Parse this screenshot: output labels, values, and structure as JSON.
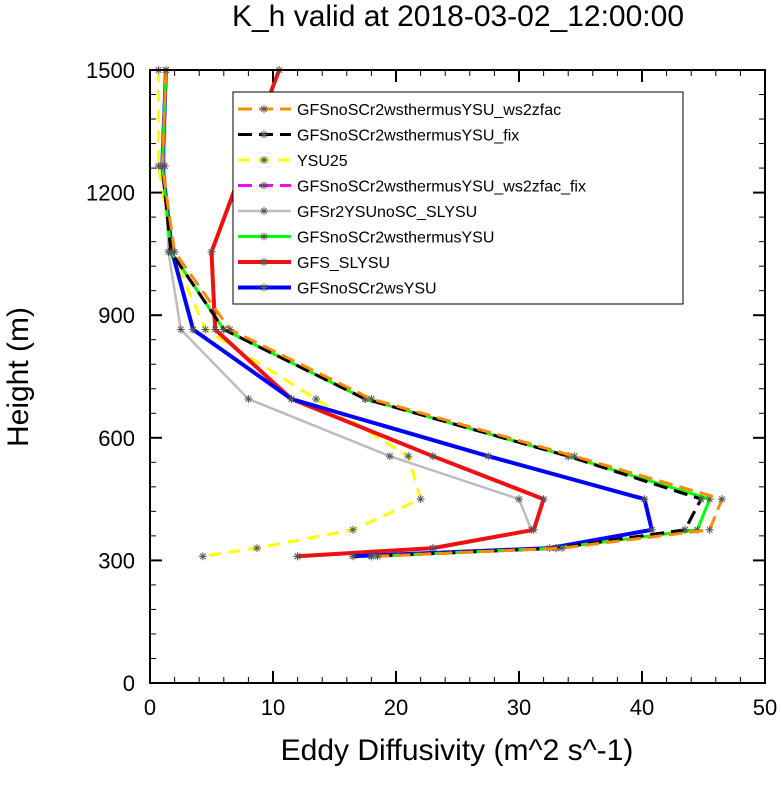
{
  "chart_data": {
    "type": "line",
    "title": "K_h valid at 2018-03-02_12:00:00",
    "xlabel": "Eddy Diffusivity (m^2 s^-1)",
    "ylabel": "Height (m)",
    "xlim": [
      0,
      50
    ],
    "ylim": [
      0,
      1500
    ],
    "xticks": [
      0,
      10,
      20,
      30,
      40,
      50
    ],
    "yticks": [
      0,
      300,
      600,
      900,
      1200,
      1500
    ],
    "xtick_labels": [
      "0",
      "10",
      "20",
      "30",
      "40",
      "50"
    ],
    "ytick_labels": [
      "0",
      "300",
      "600",
      "900",
      "1200",
      "1500"
    ],
    "grid": false,
    "legend_position": "top-right",
    "series": [
      {
        "name": "GFSnoSCr2wsthermusYSU_ws2zfac",
        "color": "#ff8c00",
        "dash": "long-dash",
        "x": [
          1.3,
          1.0,
          2.0,
          6.5,
          18.0,
          34.5,
          46.5,
          45.5,
          33.5,
          18.5
        ],
        "y": [
          1500,
          1265,
          1055,
          865,
          695,
          555,
          450,
          375,
          330,
          310
        ]
      },
      {
        "name": "GFSnoSCr2wsthermusYSU_fix",
        "color": "#000000",
        "dash": "long-dash",
        "x": [
          1.3,
          1.0,
          1.7,
          6.0,
          17.5,
          34.0,
          44.8,
          43.5,
          33.0,
          18.0
        ],
        "y": [
          1500,
          1265,
          1055,
          865,
          695,
          555,
          450,
          375,
          330,
          310
        ]
      },
      {
        "name": "YSU25",
        "color": "#ffff00",
        "dash": "dash",
        "x": [
          0.7,
          0.7,
          1.8,
          4.5,
          13.5,
          21.0,
          22.0,
          16.5,
          8.7,
          4.3
        ],
        "y": [
          1500,
          1265,
          1055,
          865,
          695,
          555,
          450,
          375,
          330,
          310
        ]
      },
      {
        "name": "GFSnoSCr2wsthermusYSU_ws2zfac_fix",
        "color": "#ff00ff",
        "dash": "long-dash",
        "x": [
          1.3,
          1.0,
          1.7,
          6.0,
          17.5,
          34.0,
          44.8,
          43.5,
          33.0,
          18.0
        ],
        "y": [
          1500,
          1265,
          1055,
          865,
          695,
          555,
          450,
          375,
          330,
          310
        ]
      },
      {
        "name": "GFSr2YSUnoSC_SLYSU",
        "color": "#bdbdbd",
        "dash": "solid",
        "x": [
          1.3,
          1.2,
          1.5,
          2.5,
          8.0,
          19.5,
          30.0,
          31.0,
          23.0,
          12.0
        ],
        "y": [
          1500,
          1265,
          1055,
          865,
          695,
          555,
          450,
          375,
          330,
          310
        ]
      },
      {
        "name": "GFSnoSCr2wsthermusYSU",
        "color": "#00ff00",
        "dash": "solid",
        "x": [
          1.3,
          1.0,
          1.7,
          6.0,
          17.5,
          34.0,
          45.5,
          44.5,
          33.0,
          18.0
        ],
        "y": [
          1500,
          1265,
          1055,
          865,
          695,
          555,
          450,
          375,
          330,
          310
        ]
      },
      {
        "name": "GFS_SLYSU",
        "color": "#ee1111",
        "dash": "solid",
        "x": [
          10.5,
          5.0,
          5.3,
          11.5,
          23.0,
          32.0,
          31.2,
          23.0,
          12.0
        ],
        "y": [
          1500,
          1055,
          865,
          695,
          555,
          450,
          375,
          330,
          310
        ]
      },
      {
        "name": "GFSnoSCr2wsYSU",
        "color": "#0000ff",
        "dash": "solid",
        "x": [
          1.3,
          1.0,
          1.8,
          3.5,
          11.5,
          27.5,
          40.2,
          40.8,
          32.5,
          16.5
        ],
        "y": [
          1500,
          1265,
          1055,
          865,
          695,
          555,
          450,
          375,
          330,
          310
        ]
      }
    ]
  }
}
